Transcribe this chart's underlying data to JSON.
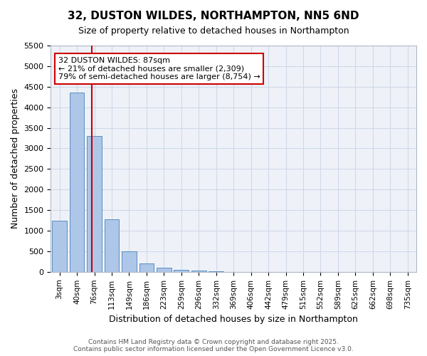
{
  "title": "32, DUSTON WILDES, NORTHAMPTON, NN5 6ND",
  "subtitle": "Size of property relative to detached houses in Northampton",
  "xlabel": "Distribution of detached houses by size in Northampton",
  "ylabel": "Number of detached properties",
  "bins": [
    "3sqm",
    "40sqm",
    "76sqm",
    "113sqm",
    "149sqm",
    "186sqm",
    "223sqm",
    "259sqm",
    "296sqm",
    "332sqm",
    "369sqm",
    "406sqm",
    "442sqm",
    "479sqm",
    "515sqm",
    "552sqm",
    "589sqm",
    "625sqm",
    "662sqm",
    "698sqm",
    "735sqm"
  ],
  "bar_values": [
    1250,
    4350,
    3300,
    1280,
    500,
    200,
    100,
    55,
    25,
    10,
    3,
    0,
    0,
    0,
    0,
    0,
    0,
    0,
    0,
    0,
    0
  ],
  "bar_color": "#aec6e8",
  "bar_edge_color": "#5a8fc0",
  "vline_pos": 1.87,
  "vline_color": "#cc0000",
  "ylim": [
    0,
    5500
  ],
  "yticks": [
    0,
    500,
    1000,
    1500,
    2000,
    2500,
    3000,
    3500,
    4000,
    4500,
    5000,
    5500
  ],
  "annotation_box_text": "32 DUSTON WILDES: 87sqm\n← 21% of detached houses are smaller (2,309)\n79% of semi-detached houses are larger (8,754) →",
  "annotation_box_color": "#cc0000",
  "grid_color": "#d0d8e8",
  "bg_color": "#eef2f8",
  "footer_line1": "Contains HM Land Registry data © Crown copyright and database right 2025.",
  "footer_line2": "Contains public sector information licensed under the Open Government Licence v3.0."
}
